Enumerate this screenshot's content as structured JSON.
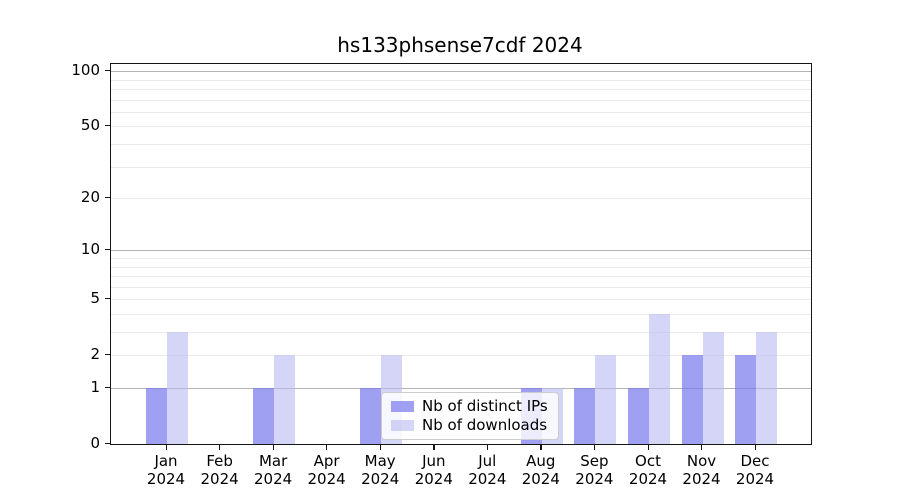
{
  "title": "hs133phsense7cdf 2024",
  "colors": {
    "distinct_ips": "rgba(120,120,236,0.70)",
    "downloads": "rgba(187,187,242,0.62)",
    "grid_major": "#b4b4b4",
    "grid_minor": "#ebebeb",
    "spine": "#151515",
    "legend_border": "#cccccc"
  },
  "legend": {
    "items": [
      {
        "label": "Nb of distinct IPs",
        "color_key": "distinct_ips"
      },
      {
        "label": "Nb of downloads",
        "color_key": "downloads"
      }
    ]
  },
  "x_axis": {
    "months": [
      "Jan",
      "Feb",
      "Mar",
      "Apr",
      "May",
      "Jun",
      "Jul",
      "Aug",
      "Sep",
      "Oct",
      "Nov",
      "Dec"
    ],
    "year": "2024"
  },
  "y_axis": {
    "tick_labels": [
      "0",
      "1",
      "2",
      "5",
      "10",
      "20",
      "50",
      "100"
    ],
    "tick_values": [
      0,
      1,
      2,
      5,
      10,
      20,
      50,
      100
    ]
  },
  "chart_data": {
    "type": "bar",
    "title": "hs133phsense7cdf 2024",
    "categories": [
      "Jan 2024",
      "Feb 2024",
      "Mar 2024",
      "Apr 2024",
      "May 2024",
      "Jun 2024",
      "Jul 2024",
      "Aug 2024",
      "Sep 2024",
      "Oct 2024",
      "Nov 2024",
      "Dec 2024"
    ],
    "series": [
      {
        "name": "Nb of distinct IPs",
        "values": [
          1,
          0,
          1,
          0,
          1,
          0,
          0,
          1,
          1,
          1,
          2,
          2
        ]
      },
      {
        "name": "Nb of downloads",
        "values": [
          3,
          0,
          2,
          0,
          2,
          0,
          0,
          1,
          2,
          4,
          3,
          3
        ]
      }
    ],
    "xlabel": "",
    "ylabel": "",
    "yscale": "log1p",
    "ylim": [
      0,
      100
    ],
    "yticks": [
      0,
      1,
      2,
      5,
      10,
      20,
      50,
      100
    ],
    "grid": "on",
    "minor_grid_values": [
      2,
      3,
      4,
      5,
      6,
      7,
      8,
      9,
      20,
      30,
      40,
      50,
      60,
      70,
      80,
      90
    ],
    "major_grid_values": [
      1,
      10,
      100
    ],
    "legend_position": "lower-center-inside"
  }
}
